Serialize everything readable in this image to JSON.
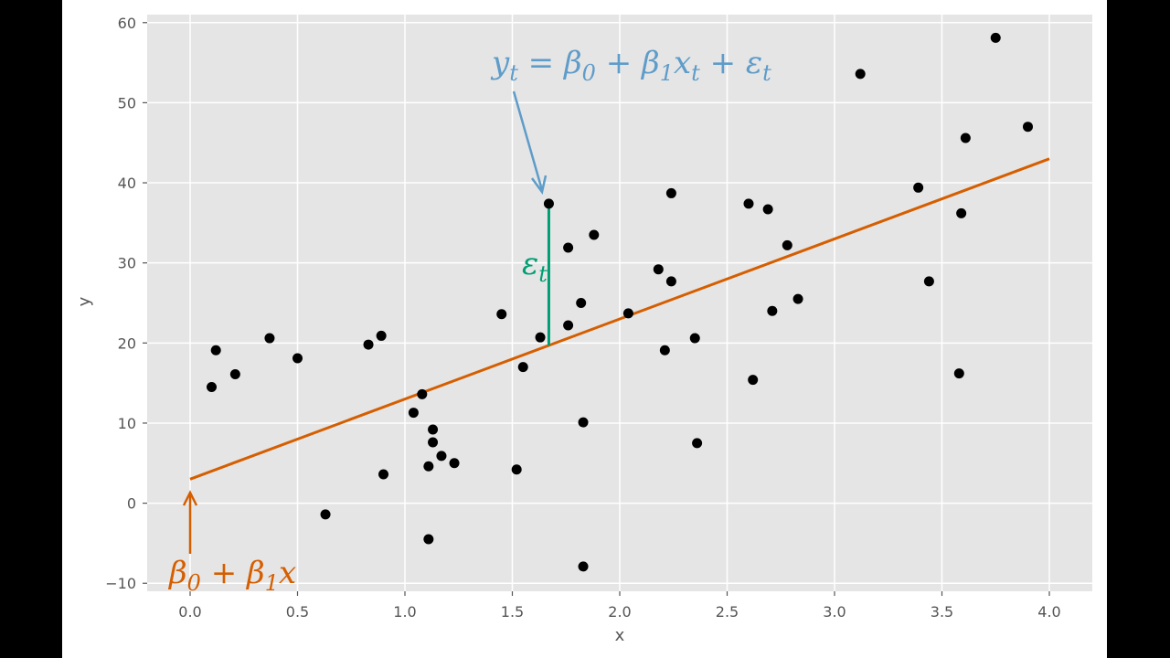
{
  "chart_data": {
    "type": "scatter",
    "title": "",
    "xlabel": "x",
    "ylabel": "y",
    "xlim": [
      -0.2,
      4.2
    ],
    "ylim": [
      -11,
      61
    ],
    "grid": true,
    "x_ticks": [
      0.0,
      0.5,
      1.0,
      1.5,
      2.0,
      2.5,
      3.0,
      3.5,
      4.0
    ],
    "x_tick_labels": [
      "0.0",
      "0.5",
      "1.0",
      "1.5",
      "2.0",
      "2.5",
      "3.0",
      "3.5",
      "4.0"
    ],
    "y_ticks": [
      -10,
      0,
      10,
      20,
      30,
      40,
      50,
      60
    ],
    "y_tick_labels": [
      "−10",
      "0",
      "10",
      "20",
      "30",
      "40",
      "50",
      "60"
    ],
    "points": [
      [
        0.1,
        14.5
      ],
      [
        0.12,
        19.1
      ],
      [
        0.21,
        16.1
      ],
      [
        0.37,
        20.6
      ],
      [
        0.5,
        18.1
      ],
      [
        0.63,
        -1.4
      ],
      [
        0.83,
        19.8
      ],
      [
        0.89,
        20.9
      ],
      [
        0.9,
        3.6
      ],
      [
        1.04,
        11.3
      ],
      [
        1.08,
        13.6
      ],
      [
        1.11,
        -4.5
      ],
      [
        1.11,
        4.6
      ],
      [
        1.13,
        9.2
      ],
      [
        1.13,
        7.6
      ],
      [
        1.17,
        5.9
      ],
      [
        1.23,
        5.0
      ],
      [
        1.45,
        23.6
      ],
      [
        1.52,
        4.2
      ],
      [
        1.55,
        17.0
      ],
      [
        1.63,
        20.7
      ],
      [
        1.67,
        37.4
      ],
      [
        1.76,
        31.9
      ],
      [
        1.76,
        22.2
      ],
      [
        1.82,
        25.0
      ],
      [
        1.83,
        10.1
      ],
      [
        1.83,
        -7.9
      ],
      [
        1.88,
        33.5
      ],
      [
        2.04,
        23.7
      ],
      [
        2.18,
        29.2
      ],
      [
        2.21,
        19.1
      ],
      [
        2.24,
        27.7
      ],
      [
        2.24,
        38.7
      ],
      [
        2.35,
        20.6
      ],
      [
        2.36,
        7.5
      ],
      [
        2.6,
        37.4
      ],
      [
        2.62,
        15.4
      ],
      [
        2.69,
        36.7
      ],
      [
        2.71,
        24.0
      ],
      [
        2.78,
        32.2
      ],
      [
        2.83,
        25.5
      ],
      [
        3.12,
        53.6
      ],
      [
        3.39,
        39.4
      ],
      [
        3.44,
        27.7
      ],
      [
        3.58,
        16.2
      ],
      [
        3.59,
        36.2
      ],
      [
        3.61,
        45.6
      ],
      [
        3.75,
        58.1
      ],
      [
        3.9,
        47.0
      ]
    ],
    "fit_line": {
      "x": [
        0.0,
        4.0
      ],
      "y": [
        3.0,
        43.0
      ]
    },
    "residual": {
      "x": 1.67,
      "y_from": 19.7,
      "y_to": 37.4
    },
    "colors": {
      "background": "#e5e5e5",
      "grid": "#ffffff",
      "points": "#000000",
      "fit_line": "#d55e00",
      "residual": "#009e73",
      "equation": "#5e9cc9"
    },
    "annotations": {
      "equation_parts": [
        "y",
        "t",
        " = β",
        "0",
        " + β",
        "1",
        "x",
        "t",
        " + ε",
        "t"
      ],
      "intercept_parts": [
        "β",
        "0",
        " + β",
        "1",
        "x"
      ],
      "residual_parts": [
        "ε",
        "t"
      ]
    }
  }
}
